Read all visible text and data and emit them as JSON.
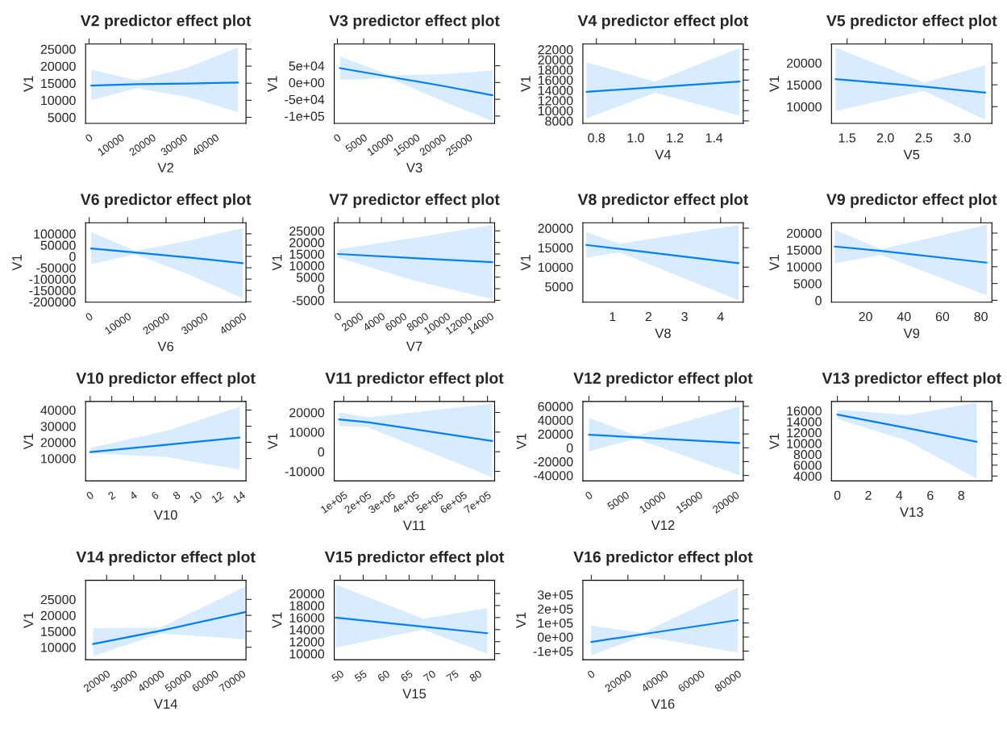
{
  "chart_data": [
    {
      "type": "line",
      "title": "V2 predictor effect plot",
      "xlabel": "V2",
      "ylabel": "V1",
      "xlim": [
        -1100,
        49700
      ],
      "ylim": [
        3200,
        26500
      ],
      "xticks": [
        0,
        10000,
        20000,
        30000,
        40000
      ],
      "yticks": [
        5000,
        10000,
        15000,
        20000,
        25000
      ],
      "x": [
        700,
        15000,
        31000,
        47200
      ],
      "series": [
        {
          "color": "#0080ff",
          "values": [
            14300,
            14700,
            14900,
            15200
          ],
          "lower": [
            10000,
            13500,
            11000,
            6500
          ],
          "upper": [
            19000,
            15800,
            19500,
            25500
          ]
        }
      ]
    },
    {
      "type": "line",
      "title": "V3 predictor effect plot",
      "xlabel": "V3",
      "ylabel": "V1",
      "xlim": [
        -600,
        29900
      ],
      "ylim": [
        -122000,
        115000
      ],
      "xticks": [
        0,
        5000,
        10000,
        15000,
        20000,
        25000
      ],
      "yticks": [
        {
          "value": -100000,
          "label": "-1e+05"
        },
        {
          "value": -50000,
          "label": "-5e+04"
        },
        {
          "value": 0,
          "label": "0e+00"
        },
        {
          "value": 50000,
          "label": "5e+04"
        }
      ],
      "x": [
        500,
        10000,
        20000,
        29500
      ],
      "series": [
        {
          "color": "#0080ff",
          "values": [
            43000,
            17000,
            -10000,
            -38000
          ],
          "lower": [
            8000,
            12000,
            -55000,
            -115000
          ],
          "upper": [
            78000,
            22000,
            25000,
            36000
          ]
        }
      ]
    },
    {
      "type": "line",
      "title": "V4 predictor effect plot",
      "xlabel": "V4",
      "ylabel": "V1",
      "xlim": [
        0.731,
        1.549
      ],
      "ylim": [
        7500,
        23080
      ],
      "xticks": [
        0.8,
        {
          "value": 1.0,
          "label": "1.0"
        },
        1.2,
        1.4
      ],
      "yticks": [
        8000,
        10000,
        12000,
        14000,
        16000,
        18000,
        20000,
        22000
      ],
      "x": [
        0.75,
        1.1,
        1.53
      ],
      "series": [
        {
          "color": "#0080ff",
          "values": [
            13700,
            14600,
            15700
          ],
          "lower": [
            8500,
            13500,
            9000
          ],
          "upper": [
            19500,
            15700,
            22300
          ]
        }
      ]
    },
    {
      "type": "line",
      "title": "V5 predictor effect plot",
      "xlabel": "V5",
      "ylabel": "V1",
      "xlim": [
        1.297,
        3.387
      ],
      "ylim": [
        6170,
        24333
      ],
      "xticks": [
        1.5,
        {
          "value": 2.0,
          "label": "2.0"
        },
        2.5,
        {
          "value": 3.0,
          "label": "3.0"
        }
      ],
      "yticks": [
        10000,
        15000,
        20000
      ],
      "x": [
        1.35,
        2.5,
        3.3
      ],
      "series": [
        {
          "color": "#0080ff",
          "values": [
            16300,
            14600,
            13200
          ],
          "lower": [
            9000,
            13600,
            7000
          ],
          "upper": [
            23500,
            15500,
            19500
          ]
        }
      ]
    },
    {
      "type": "line",
      "title": "V6 predictor effect plot",
      "xlabel": "V6",
      "ylabel": "V1",
      "xlim": [
        -940,
        40830
      ],
      "ylim": [
        -202000,
        148600
      ],
      "xticks": [
        0,
        10000,
        20000,
        30000,
        40000
      ],
      "yticks": [
        -200000,
        -150000,
        -100000,
        -50000,
        0,
        50000,
        100000
      ],
      "x": [
        500,
        12000,
        26000,
        40000
      ],
      "series": [
        {
          "color": "#0080ff",
          "values": [
            35000,
            17000,
            -5000,
            -30000
          ],
          "lower": [
            -35000,
            10000,
            -80000,
            -185000
          ],
          "upper": [
            108000,
            25000,
            70000,
            125000
          ]
        }
      ]
    },
    {
      "type": "line",
      "title": "V7 predictor effect plot",
      "xlabel": "V7",
      "ylabel": "V1",
      "xlim": [
        -340,
        14400
      ],
      "ylim": [
        -5800,
        28500
      ],
      "xticks": [
        0,
        2000,
        4000,
        6000,
        8000,
        10000,
        12000,
        14000
      ],
      "yticks": [
        -5000,
        0,
        5000,
        10000,
        15000,
        20000,
        25000
      ],
      "x": [
        0,
        7000,
        14200
      ],
      "series": [
        {
          "color": "#0080ff",
          "values": [
            15000,
            13200,
            11500
          ],
          "lower": [
            13500,
            3500,
            -4500
          ],
          "upper": [
            17000,
            22000,
            27500
          ]
        }
      ]
    },
    {
      "type": "line",
      "title": "V8 predictor effect plot",
      "xlabel": "V8",
      "ylabel": "V1",
      "xlim": [
        0.176,
        4.63
      ],
      "ylim": [
        1000,
        21400
      ],
      "xticks": [
        1,
        2,
        3,
        4
      ],
      "yticks": [
        5000,
        10000,
        15000,
        20000
      ],
      "x": [
        0.27,
        1.2,
        4.5
      ],
      "series": [
        {
          "color": "#0080ff",
          "values": [
            15700,
            14700,
            11000
          ],
          "lower": [
            12500,
            13800,
            1500
          ],
          "upper": [
            19000,
            16000,
            20800
          ]
        }
      ]
    },
    {
      "type": "line",
      "title": "V9 predictor effect plot",
      "xlabel": "V9",
      "ylabel": "V1",
      "xlim": [
        2.3,
        85.7
      ],
      "ylim": [
        -550,
        23080
      ],
      "xticks": [
        20,
        40,
        60,
        80
      ],
      "yticks": [
        0,
        5000,
        10000,
        15000,
        20000
      ],
      "x": [
        4,
        28,
        83
      ],
      "series": [
        {
          "color": "#0080ff",
          "values": [
            16000,
            14700,
            11200
          ],
          "lower": [
            11000,
            13500,
            1500
          ],
          "upper": [
            21000,
            15200,
            22500
          ]
        }
      ]
    },
    {
      "type": "line",
      "title": "V10 predictor effect plot",
      "xlabel": "V10",
      "ylabel": "V1",
      "xlim": [
        -0.42,
        14.4
      ],
      "ylim": [
        -3900,
        45300
      ],
      "xticks": [
        0,
        2,
        4,
        6,
        8,
        10,
        12,
        14
      ],
      "yticks": [
        10000,
        20000,
        30000,
        40000
      ],
      "x": [
        0,
        7,
        13.8
      ],
      "series": [
        {
          "color": "#0080ff",
          "values": [
            14000,
            18500,
            23000
          ],
          "lower": [
            13000,
            11000,
            3000
          ],
          "upper": [
            16500,
            27000,
            42000
          ]
        }
      ]
    },
    {
      "type": "line",
      "title": "V11 predictor effect plot",
      "xlabel": "V11",
      "ylabel": "V1",
      "xlim": [
        60000,
        730000
      ],
      "ylim": [
        -14900,
        25600
      ],
      "xticks": [
        {
          "value": 100000,
          "label": "1e+05"
        },
        {
          "value": 200000,
          "label": "2e+05"
        },
        {
          "value": 300000,
          "label": "3e+05"
        },
        {
          "value": 400000,
          "label": "4e+05"
        },
        {
          "value": 500000,
          "label": "5e+05"
        },
        {
          "value": 600000,
          "label": "6e+05"
        },
        {
          "value": 700000,
          "label": "7e+05"
        }
      ],
      "yticks": [
        -10000,
        0,
        10000,
        20000
      ],
      "x": [
        80000,
        200000,
        720000
      ],
      "series": [
        {
          "color": "#0080ff",
          "values": [
            16500,
            15000,
            5500
          ],
          "lower": [
            13000,
            12500,
            -13000
          ],
          "upper": [
            20000,
            17500,
            24500
          ]
        }
      ]
    },
    {
      "type": "line",
      "title": "V12 predictor effect plot",
      "xlabel": "V12",
      "ylabel": "V1",
      "xlim": [
        -830,
        21040
      ],
      "ylim": [
        -48000,
        67000
      ],
      "xticks": [
        0,
        5000,
        10000,
        15000,
        20000
      ],
      "yticks": [
        -40000,
        -20000,
        0,
        20000,
        40000,
        60000
      ],
      "x": [
        0,
        6500,
        20500
      ],
      "series": [
        {
          "color": "#0080ff",
          "values": [
            19000,
            15000,
            7000
          ],
          "lower": [
            -5000,
            13000,
            -40000
          ],
          "upper": [
            43000,
            18000,
            60000
          ]
        }
      ]
    },
    {
      "type": "line",
      "title": "V13 predictor effect plot",
      "xlabel": "V13",
      "ylabel": "V1",
      "xlim": [
        -0.38,
        9.98
      ],
      "ylim": [
        3100,
        17700
      ],
      "xticks": [
        0,
        2,
        4,
        6,
        8
      ],
      "yticks": [
        4000,
        6000,
        8000,
        10000,
        12000,
        14000,
        16000
      ],
      "x": [
        0,
        4.5,
        9
      ],
      "series": [
        {
          "color": "#0080ff",
          "values": [
            15300,
            12800,
            10300
          ],
          "lower": [
            14500,
            10500,
            3500
          ],
          "upper": [
            16200,
            15200,
            17500
          ]
        }
      ]
    },
    {
      "type": "line",
      "title": "V14 predictor effect plot",
      "xlabel": "V14",
      "ylabel": "V1",
      "xlim": [
        12250,
        71400
      ],
      "ylim": [
        6100,
        31000
      ],
      "xticks": [
        20000,
        30000,
        40000,
        50000,
        60000,
        70000
      ],
      "yticks": [
        10000,
        15000,
        20000,
        25000
      ],
      "x": [
        15000,
        40000,
        71000
      ],
      "series": [
        {
          "color": "#0080ff",
          "values": [
            11000,
            15200,
            21000
          ],
          "lower": [
            7200,
            14300,
            12500
          ],
          "upper": [
            16000,
            16200,
            29000
          ]
        }
      ]
    },
    {
      "type": "line",
      "title": "V15 predictor effect plot",
      "xlabel": "V15",
      "ylabel": "V1",
      "xlim": [
        48.7,
        83.6
      ],
      "ylim": [
        9000,
        22200
      ],
      "xticks": [
        50,
        55,
        60,
        65,
        70,
        75,
        80
      ],
      "yticks": [
        10000,
        12000,
        14000,
        16000,
        18000,
        20000
      ],
      "x": [
        49,
        68,
        82
      ],
      "series": [
        {
          "color": "#0080ff",
          "values": [
            16000,
            14500,
            13400
          ],
          "lower": [
            11000,
            14000,
            10000
          ],
          "upper": [
            21500,
            15800,
            17600
          ]
        }
      ]
    },
    {
      "type": "line",
      "title": "V16 predictor effect plot",
      "xlabel": "V16",
      "ylabel": "V1",
      "xlim": [
        -4600,
        83000
      ],
      "ylim": [
        -161000,
        403000
      ],
      "xticks": [
        0,
        20000,
        40000,
        60000,
        80000
      ],
      "yticks": [
        {
          "value": -100000,
          "label": "-1e+05"
        },
        {
          "value": 0,
          "label": "0e+00"
        },
        {
          "value": 100000,
          "label": "1e+05"
        },
        {
          "value": 200000,
          "label": "2e+05"
        },
        {
          "value": 300000,
          "label": "3e+05"
        }
      ],
      "x": [
        0,
        28000,
        80000
      ],
      "series": [
        {
          "color": "#0080ff",
          "values": [
            -35000,
            20000,
            120000
          ],
          "lower": [
            -130000,
            5000,
            -110000
          ],
          "upper": [
            80000,
            30000,
            350000
          ]
        }
      ]
    }
  ]
}
